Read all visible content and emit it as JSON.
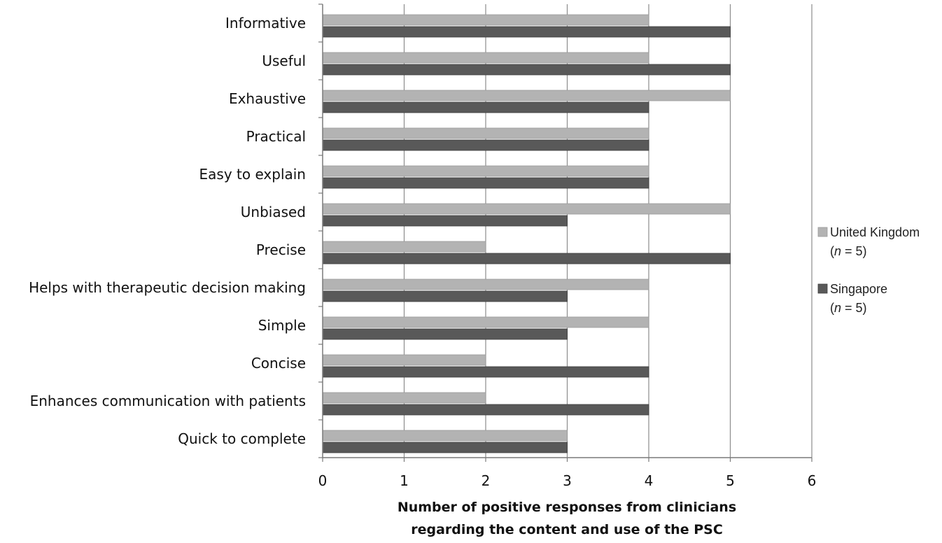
{
  "chart_data": {
    "type": "bar",
    "orientation": "horizontal",
    "categories": [
      "Informative",
      "Useful",
      "Exhaustive",
      "Practical",
      "Easy to explain",
      "Unbiased",
      "Precise",
      "Helps with therapeutic decision making",
      "Simple",
      "Concise",
      "Enhances communication with patients",
      "Quick to complete"
    ],
    "series": [
      {
        "name": "United Kingdom",
        "name_note_prefix": "(",
        "name_note_var": "n",
        "name_note_suffix": " = 5)",
        "color": "#b3b3b3",
        "values": [
          4,
          4,
          5,
          4,
          4,
          5,
          2,
          4,
          4,
          2,
          2,
          3
        ]
      },
      {
        "name": "Singapore",
        "name_note_prefix": "(",
        "name_note_var": "n",
        "name_note_suffix": " = 5)",
        "color": "#595959",
        "values": [
          5,
          5,
          4,
          4,
          4,
          3,
          5,
          3,
          3,
          4,
          4,
          3
        ]
      }
    ],
    "xlim": [
      0,
      6
    ],
    "xticks": [
      "0",
      "1",
      "2",
      "3",
      "4",
      "5",
      "6"
    ],
    "xlabel_lines": [
      "Number of positive responses from clinicians",
      "regarding the content and use of the PSC"
    ],
    "grid": "vertical",
    "legend_position": "right"
  }
}
